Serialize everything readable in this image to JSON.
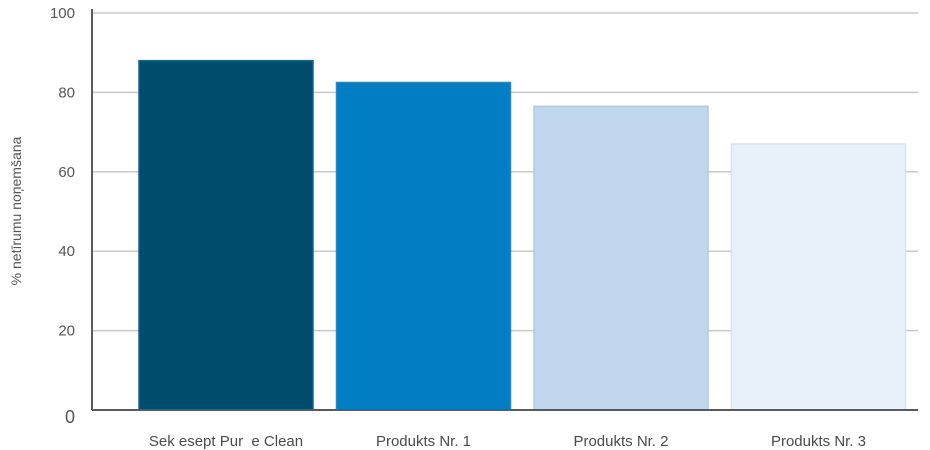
{
  "chart_data": {
    "type": "bar",
    "title": "",
    "xlabel": "",
    "ylabel": "% netīrumu noņemšana",
    "categories": [
      "Sek esept Pur  e Clean",
      "Produkts Nr. 1",
      "Produkts Nr. 2",
      "Produkts Nr. 3"
    ],
    "values": [
      88,
      82.5,
      76.5,
      67
    ],
    "ylim": [
      0,
      100
    ],
    "yticks": [
      "0",
      "20",
      "40",
      "60",
      "80",
      "100"
    ],
    "grid": true,
    "legend": "none",
    "colors": {
      "bars": [
        "#004c6d",
        "#007dc3",
        "#bfd6ec",
        "#e8f0f9"
      ],
      "bar_strokes": [
        "#0b6690",
        "#1a8dcf",
        "#b0cbe6",
        "#d6e3f2"
      ],
      "grid": "#c9c9c9",
      "axis": "#5a5a5a"
    }
  }
}
